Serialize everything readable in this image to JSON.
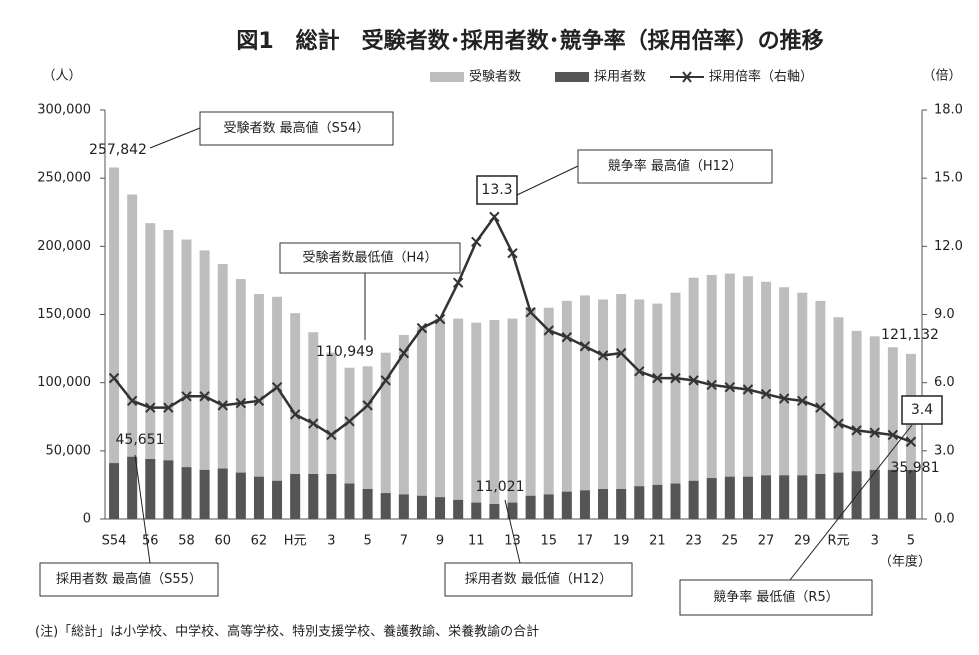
{
  "chart_data": {
    "type": "bar_line",
    "title": "図1　総計　受験者数･採用者数･競争率（採用倍率）の推移",
    "y_unit": "（人）",
    "y2_unit": "（倍）",
    "x_unit": "（年度）",
    "note": "(注)「総計」は小学校、中学校、高等学校、特別支援学校、養護教諭、栄養教諭の合計",
    "categories": [
      "S54",
      null,
      "56",
      null,
      "58",
      null,
      "60",
      null,
      "62",
      null,
      "H元",
      null,
      "3",
      null,
      "5",
      null,
      "7",
      null,
      "9",
      null,
      "11",
      null,
      "13",
      null,
      "15",
      null,
      "17",
      null,
      "19",
      null,
      "21",
      null,
      "23",
      null,
      "25",
      null,
      "27",
      null,
      "29",
      null,
      "R元",
      null,
      "3",
      null,
      "5"
    ],
    "series": [
      {
        "name": "受験者数",
        "kind": "bar",
        "color": "#bdbdbd",
        "values": [
          257842,
          238000,
          217000,
          212000,
          205000,
          197000,
          187000,
          176000,
          165000,
          163000,
          151000,
          137000,
          122000,
          110949,
          112000,
          122000,
          135000,
          141000,
          147000,
          147000,
          144000,
          146000,
          147000,
          155000,
          155000,
          160000,
          164000,
          161000,
          165000,
          161000,
          158000,
          166000,
          177000,
          179000,
          180000,
          178000,
          174000,
          170000,
          166000,
          160000,
          148000,
          138000,
          134000,
          126000,
          121132
        ],
        "value_labels": [
          "257,842",
          null,
          null,
          null,
          null,
          null,
          null,
          null,
          null,
          null,
          null,
          null,
          null,
          "110,949",
          null,
          null,
          null,
          null,
          null,
          null,
          null,
          null,
          null,
          null,
          null,
          null,
          null,
          null,
          null,
          null,
          null,
          null,
          null,
          null,
          null,
          null,
          null,
          null,
          null,
          null,
          null,
          null,
          null,
          null,
          "121,132"
        ]
      },
      {
        "name": "採用者数",
        "kind": "bar",
        "color": "#555555",
        "values": [
          41000,
          45651,
          44000,
          43000,
          38000,
          36000,
          37000,
          34000,
          31000,
          28000,
          33000,
          33000,
          33000,
          26000,
          22000,
          19000,
          18000,
          17000,
          16000,
          14000,
          12000,
          11021,
          12000,
          17000,
          18000,
          20000,
          21000,
          22000,
          22000,
          24000,
          25000,
          26000,
          28000,
          30000,
          31000,
          31000,
          32000,
          32000,
          32000,
          33000,
          34000,
          35000,
          36000,
          36000,
          35981
        ],
        "value_labels": [
          null,
          "45,651",
          null,
          null,
          null,
          null,
          null,
          null,
          null,
          null,
          null,
          null,
          null,
          null,
          null,
          null,
          null,
          null,
          null,
          null,
          null,
          "11,021",
          null,
          null,
          null,
          null,
          null,
          null,
          null,
          null,
          null,
          null,
          null,
          null,
          null,
          null,
          null,
          null,
          null,
          null,
          null,
          null,
          null,
          null,
          "35,981"
        ]
      },
      {
        "name": "採用倍率（右軸）",
        "kind": "line",
        "axis": "y2",
        "color": "#333333",
        "values": [
          6.2,
          5.2,
          4.9,
          4.9,
          5.4,
          5.4,
          5.0,
          5.1,
          5.2,
          5.8,
          4.6,
          4.2,
          3.7,
          4.3,
          5.0,
          6.1,
          7.3,
          8.4,
          8.8,
          10.4,
          12.2,
          13.3,
          11.7,
          9.1,
          8.3,
          8.0,
          7.6,
          7.2,
          7.3,
          6.5,
          6.2,
          6.2,
          6.1,
          5.9,
          5.8,
          5.7,
          5.5,
          5.3,
          5.2,
          4.9,
          4.2,
          3.9,
          3.8,
          3.7,
          3.4
        ],
        "value_labels": [
          null,
          null,
          null,
          null,
          null,
          null,
          null,
          null,
          null,
          null,
          null,
          null,
          null,
          null,
          null,
          null,
          null,
          null,
          null,
          null,
          null,
          "13.3",
          null,
          null,
          null,
          null,
          null,
          null,
          null,
          null,
          null,
          null,
          null,
          null,
          null,
          null,
          null,
          null,
          null,
          null,
          null,
          null,
          null,
          null,
          "3.4"
        ]
      }
    ],
    "ylim": [
      0,
      300000
    ],
    "yticks": [
      0,
      {
        "value": 50000,
        "label": "50,000"
      },
      {
        "value": 100000,
        "label": "100,000"
      },
      {
        "value": 150000,
        "label": "150,000"
      },
      {
        "value": 200000,
        "label": "200,000"
      },
      {
        "value": 250000,
        "label": "250,000"
      },
      {
        "value": 300000,
        "label": "300,000"
      }
    ],
    "y2lim": [
      0,
      18
    ],
    "y2ticks": [
      {
        "value": 0,
        "label": "0.0"
      },
      {
        "value": 3,
        "label": "3.0"
      },
      {
        "value": 6,
        "label": "6.0"
      },
      {
        "value": 9,
        "label": "9.0"
      },
      {
        "value": 12,
        "label": "12.0"
      },
      {
        "value": 15,
        "label": "15.0"
      },
      {
        "value": 18,
        "label": "18.0"
      }
    ],
    "annotations": [
      "受験者数 最高値（S54）",
      "競争率 最高値（H12）",
      "受験者数最低値（H4）",
      "採用者数 最高値（S55）",
      "採用者数 最低値（H12）",
      "競争率 最低値（R5）"
    ]
  }
}
